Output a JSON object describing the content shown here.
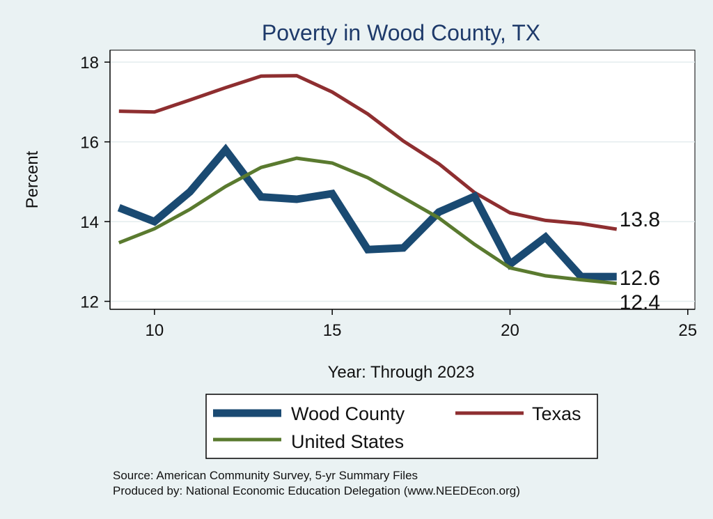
{
  "chart_data": {
    "type": "line",
    "title": "Poverty in Wood County, TX",
    "xlabel": "Year: Through 2023",
    "ylabel": "Percent",
    "xlim": [
      8.75,
      25.2
    ],
    "ylim": [
      11.8,
      18.3
    ],
    "xticks": [
      10,
      15,
      20,
      25
    ],
    "yticks": [
      12,
      14,
      16,
      18
    ],
    "grid": true,
    "legend_position": "bottom",
    "x": [
      9,
      10,
      11,
      12,
      13,
      14,
      15,
      16,
      17,
      18,
      19,
      20,
      21,
      22,
      23
    ],
    "series": [
      {
        "name": "Wood County",
        "color": "#1a4a72",
        "values": [
          14.35,
          14.0,
          14.75,
          15.8,
          14.62,
          14.56,
          14.7,
          13.3,
          13.34,
          14.24,
          14.63,
          12.93,
          13.61,
          12.62,
          12.62
        ],
        "end_label": "12.6"
      },
      {
        "name": "Texas",
        "color": "#8e2e30",
        "values": [
          16.77,
          16.75,
          17.05,
          17.36,
          17.65,
          17.66,
          17.25,
          16.7,
          16.02,
          15.45,
          14.73,
          14.22,
          14.03,
          13.95,
          13.81
        ],
        "end_label": "13.8"
      },
      {
        "name": "United States",
        "color": "#5a7a2f",
        "values": [
          13.47,
          13.82,
          14.31,
          14.88,
          15.36,
          15.59,
          15.47,
          15.1,
          14.6,
          14.09,
          13.43,
          12.84,
          12.64,
          12.54,
          12.45
        ],
        "end_label": "12.4"
      }
    ]
  },
  "notes": {
    "source": "Source: American Community Survey, 5-yr Summary Files",
    "produced": "Produced by: National Economic Education Delegation (www.NEEDEcon.org)"
  }
}
